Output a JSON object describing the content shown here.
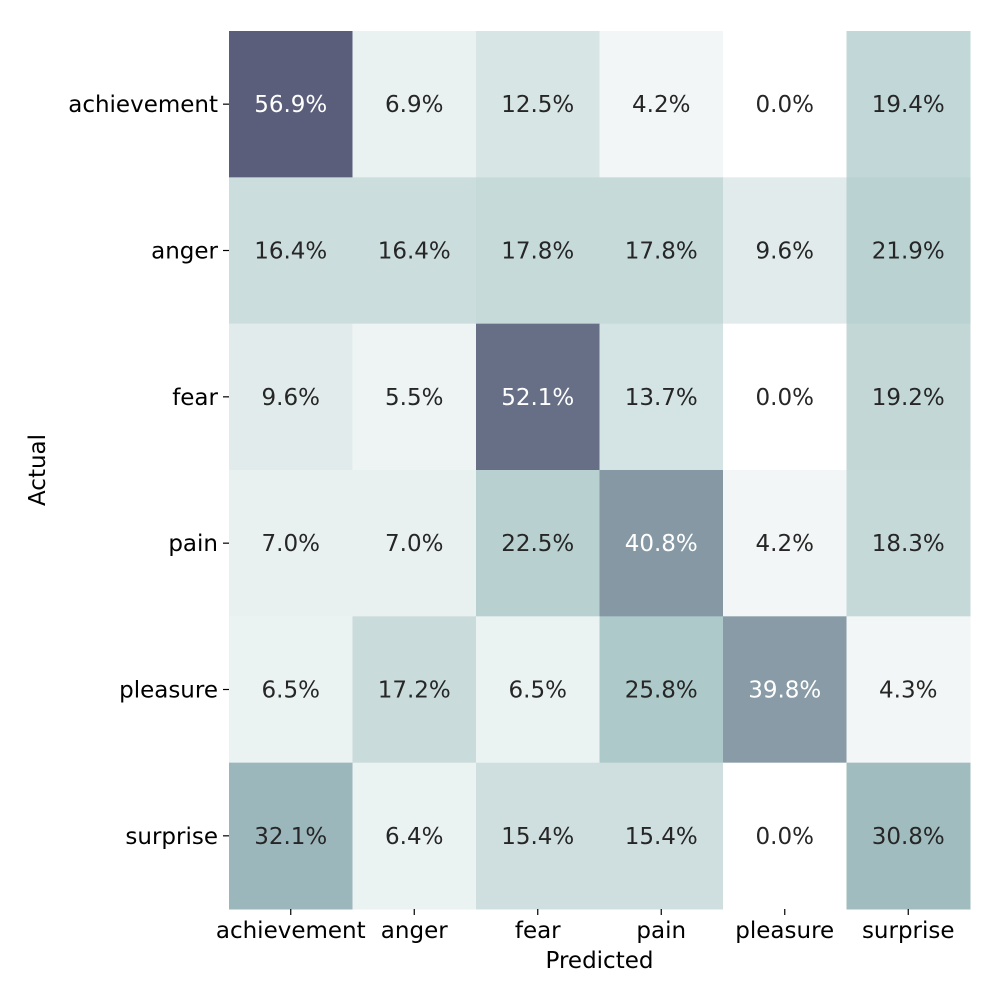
{
  "chart_data": {
    "type": "heatmap",
    "title": "",
    "xlabel": "Predicted",
    "ylabel": "Actual",
    "x_categories": [
      "achievement",
      "anger",
      "fear",
      "pain",
      "pleasure",
      "surprise"
    ],
    "y_categories": [
      "achievement",
      "anger",
      "fear",
      "pain",
      "pleasure",
      "surprise"
    ],
    "values": [
      [
        56.9,
        6.9,
        12.5,
        4.2,
        0.0,
        19.4
      ],
      [
        16.4,
        16.4,
        17.8,
        17.8,
        9.6,
        21.9
      ],
      [
        9.6,
        5.5,
        52.1,
        13.7,
        0.0,
        19.2
      ],
      [
        7.0,
        7.0,
        22.5,
        40.8,
        4.2,
        18.3
      ],
      [
        6.5,
        17.2,
        6.5,
        25.8,
        39.8,
        4.3
      ],
      [
        32.1,
        6.4,
        15.4,
        15.4,
        0.0,
        30.8
      ]
    ],
    "value_format": "percent_1dp",
    "colorbar": false,
    "color_scale": {
      "min_color": "#ffffff",
      "mid_color": "#a6c4c4",
      "max_color": "#5a5e7a",
      "text_dark": "#262626",
      "text_light": "#ffffff"
    }
  }
}
